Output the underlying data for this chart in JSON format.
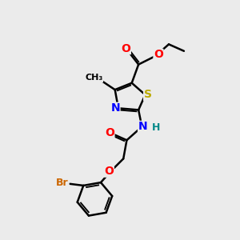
{
  "bg_color": "#ebebeb",
  "bond_color": "#000000",
  "bond_width": 1.8,
  "atom_colors": {
    "N": "#0000ff",
    "O": "#ff0000",
    "S": "#bbaa00",
    "Br": "#cc6600",
    "C": "#000000",
    "H": "#008888"
  },
  "font_size": 9
}
